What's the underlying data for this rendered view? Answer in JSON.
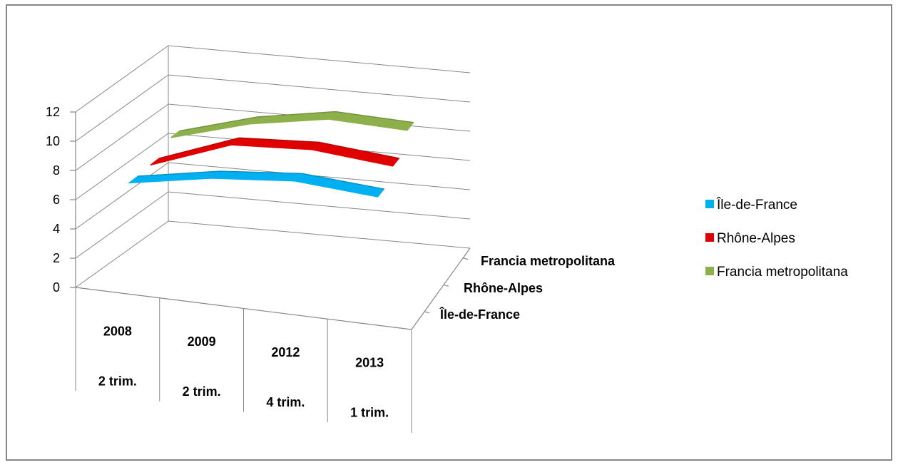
{
  "chart_data": {
    "type": "line",
    "style": "3d",
    "categories": [
      {
        "year": "2008",
        "period": "2 trim."
      },
      {
        "year": "2009",
        "period": "2 trim."
      },
      {
        "year": "2012",
        "period": "4 trim."
      },
      {
        "year": "2013",
        "period": "1 trim."
      }
    ],
    "series": [
      {
        "name": "Île-de-France",
        "color": "#00B0F0",
        "values": [
          6.9,
          7.9,
          8.4,
          8.0
        ]
      },
      {
        "name": "Rhône-Alpes",
        "color": "#E00000",
        "values": [
          7.0,
          9.0,
          9.3,
          8.8
        ]
      },
      {
        "name": "Francia metropolitana",
        "color": "#8DB04A",
        "values": [
          7.8,
          9.3,
          10.2,
          10.0
        ]
      }
    ],
    "depth_labels": [
      "Francia metropolitana",
      "Rhône-Alpes",
      "Île-de-France"
    ],
    "y_ticks": [
      "0",
      "2",
      "4",
      "6",
      "8",
      "10",
      "12"
    ],
    "ylim": [
      0,
      12
    ],
    "grid": true,
    "legend_position": "right"
  }
}
